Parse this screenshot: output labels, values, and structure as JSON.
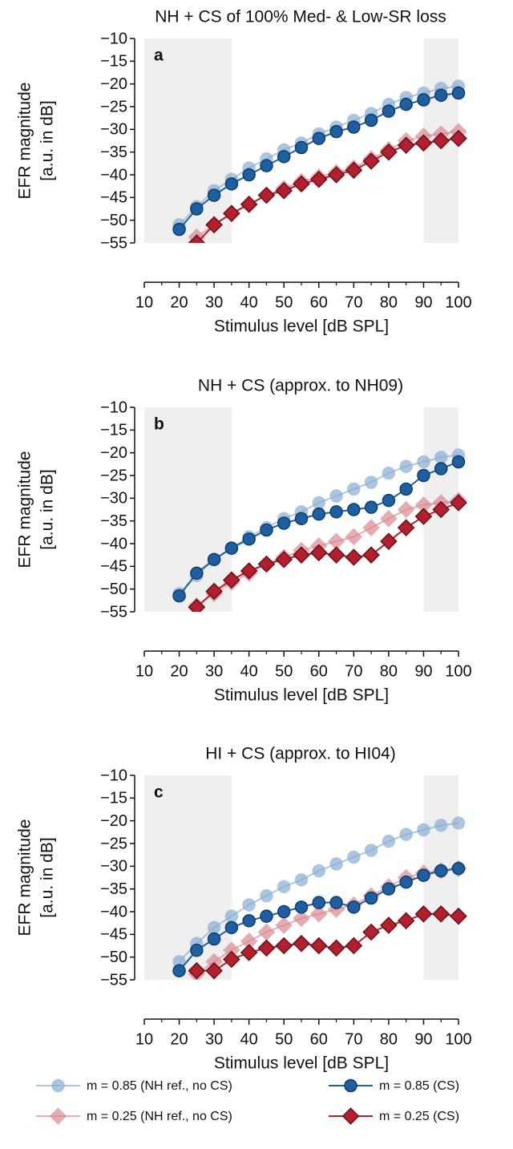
{
  "chart_data": [
    {
      "type": "line",
      "title": "NH + CS of 100% Med- & Low-SR loss",
      "panel": "a",
      "xlabel": "Stimulus level [dB SPL]",
      "ylabel": [
        "EFR magnitude",
        "[a.u. in dB]"
      ],
      "x": [
        20,
        25,
        30,
        35,
        40,
        45,
        50,
        55,
        60,
        65,
        70,
        75,
        80,
        85,
        90,
        95,
        100
      ],
      "xlim": [
        10,
        100
      ],
      "xticks": [
        10,
        20,
        30,
        40,
        50,
        60,
        70,
        80,
        90,
        100
      ],
      "xminorticks": [
        15,
        25,
        35,
        45,
        55,
        65,
        75,
        85,
        95
      ],
      "ylim": [
        -55,
        -10
      ],
      "yticks": [
        {
          "value": -10,
          "label": "−10"
        },
        {
          "value": -15,
          "label": "−15"
        },
        {
          "value": -20,
          "label": "−20"
        },
        {
          "value": -25,
          "label": "−25"
        },
        {
          "value": -30,
          "label": "−30"
        },
        {
          "value": -35,
          "label": "−35"
        },
        {
          "value": -40,
          "label": "−40"
        },
        {
          "value": -45,
          "label": "−45"
        },
        {
          "value": -50,
          "label": "−50"
        },
        {
          "value": -55,
          "label": "−55"
        }
      ],
      "spans": [
        [
          10,
          35
        ],
        [
          90,
          100
        ]
      ],
      "series": [
        {
          "name": "m = 0.85 (NH ref., no CS)",
          "color": "#8aaed4",
          "marker": "circle",
          "values": [
            -51,
            -47,
            -43.5,
            -41,
            -38.5,
            -36.5,
            -34.5,
            -33,
            -31,
            -29.5,
            -28,
            -26.5,
            -24.5,
            -23,
            -22,
            -21,
            -20.5
          ]
        },
        {
          "name": "m = 0.25 (NH ref., no CS)",
          "color": "#d98a93",
          "marker": "diamond",
          "values": [
            null,
            -53.7,
            -51,
            -48.5,
            -46.5,
            -44.5,
            -43,
            -41.5,
            -40.5,
            -39.5,
            -38.5,
            -36.5,
            -34.5,
            -32.5,
            -31.5,
            -31,
            -30.5
          ]
        },
        {
          "name": "m = 0.85 (CS)",
          "color": "#1f5fa0",
          "marker": "circle",
          "values": [
            -52,
            -47.5,
            -44.5,
            -42,
            -40,
            -38,
            -36,
            -34,
            -32,
            -30.5,
            -29.5,
            -28,
            -26,
            -24.5,
            -23.5,
            -22.5,
            -22
          ]
        },
        {
          "name": "m = 0.25 (CS)",
          "color": "#b0202e",
          "marker": "diamond",
          "values": [
            null,
            -55,
            -51,
            -48.5,
            -46.5,
            -44.5,
            -43.5,
            -42,
            -41,
            -40,
            -39,
            -37,
            -35,
            -33.5,
            -33,
            -32.5,
            -32
          ]
        }
      ]
    },
    {
      "type": "line",
      "title": "NH + CS (approx. to NH09)",
      "panel": "b",
      "xlabel": "Stimulus level [dB SPL]",
      "ylabel": [
        "EFR magnitude",
        "[a.u. in dB]"
      ],
      "x": [
        20,
        25,
        30,
        35,
        40,
        45,
        50,
        55,
        60,
        65,
        70,
        75,
        80,
        85,
        90,
        95,
        100
      ],
      "xlim": [
        10,
        100
      ],
      "xticks": [
        10,
        20,
        30,
        40,
        50,
        60,
        70,
        80,
        90,
        100
      ],
      "xminorticks": [
        15,
        25,
        35,
        45,
        55,
        65,
        75,
        85,
        95
      ],
      "ylim": [
        -55,
        -10
      ],
      "yticks": [
        {
          "value": -10,
          "label": "−10"
        },
        {
          "value": -15,
          "label": "−15"
        },
        {
          "value": -20,
          "label": "−20"
        },
        {
          "value": -25,
          "label": "−25"
        },
        {
          "value": -30,
          "label": "−30"
        },
        {
          "value": -35,
          "label": "−35"
        },
        {
          "value": -40,
          "label": "−40"
        },
        {
          "value": -45,
          "label": "−45"
        },
        {
          "value": -50,
          "label": "−50"
        },
        {
          "value": -55,
          "label": "−55"
        }
      ],
      "spans": [
        [
          10,
          35
        ],
        [
          90,
          100
        ]
      ],
      "series": [
        {
          "name": "m = 0.85 (NH ref., no CS)",
          "color": "#8aaed4",
          "marker": "circle",
          "values": [
            -51,
            -47,
            -43.5,
            -41,
            -38.5,
            -36.5,
            -34.5,
            -33,
            -31,
            -29.5,
            -28,
            -26.5,
            -24.5,
            -23,
            -22,
            -21,
            -20.5
          ]
        },
        {
          "name": "m = 0.25 (NH ref., no CS)",
          "color": "#d98a93",
          "marker": "diamond",
          "values": [
            null,
            -53.7,
            -51,
            -48.5,
            -46.5,
            -44.5,
            -43,
            -41.5,
            -40.5,
            -39.5,
            -38.5,
            -36.5,
            -34.5,
            -32.5,
            -31.5,
            -31,
            -30.5
          ]
        },
        {
          "name": "m = 0.85 (CS)",
          "color": "#1f5fa0",
          "marker": "circle",
          "values": [
            -51.5,
            -46.5,
            -43.5,
            -41,
            -39,
            -37,
            -35.5,
            -34.5,
            -33.5,
            -33,
            -32.5,
            -32,
            -30.5,
            -28,
            -25,
            -23.5,
            -22
          ]
        },
        {
          "name": "m = 0.25 (CS)",
          "color": "#b0202e",
          "marker": "diamond",
          "values": [
            null,
            -54,
            -50.5,
            -48,
            -46,
            -44.5,
            -43.5,
            -42.5,
            -42,
            -42.5,
            -43,
            -42.5,
            -39.5,
            -36.5,
            -34,
            -32.5,
            -31
          ]
        }
      ]
    },
    {
      "type": "line",
      "title": "HI + CS (approx. to HI04)",
      "panel": "c",
      "xlabel": "Stimulus level [dB SPL]",
      "ylabel": [
        "EFR magnitude",
        "[a.u. in dB]"
      ],
      "x": [
        20,
        25,
        30,
        35,
        40,
        45,
        50,
        55,
        60,
        65,
        70,
        75,
        80,
        85,
        90,
        95,
        100
      ],
      "xlim": [
        10,
        100
      ],
      "xticks": [
        10,
        20,
        30,
        40,
        50,
        60,
        70,
        80,
        90,
        100
      ],
      "xminorticks": [
        15,
        25,
        35,
        45,
        55,
        65,
        75,
        85,
        95
      ],
      "ylim": [
        -55,
        -10
      ],
      "yticks": [
        {
          "value": -10,
          "label": "−10"
        },
        {
          "value": -15,
          "label": "−15"
        },
        {
          "value": -20,
          "label": "−20"
        },
        {
          "value": -25,
          "label": "−25"
        },
        {
          "value": -30,
          "label": "−30"
        },
        {
          "value": -35,
          "label": "−35"
        },
        {
          "value": -40,
          "label": "−40"
        },
        {
          "value": -45,
          "label": "−45"
        },
        {
          "value": -50,
          "label": "−50"
        },
        {
          "value": -55,
          "label": "−55"
        }
      ],
      "spans": [
        [
          10,
          35
        ],
        [
          90,
          100
        ]
      ],
      "series": [
        {
          "name": "m = 0.85 (NH ref., no CS)",
          "color": "#8aaed4",
          "marker": "circle",
          "values": [
            -51,
            -47,
            -43.5,
            -41,
            -38.5,
            -36.5,
            -34.5,
            -33,
            -31,
            -29.5,
            -28,
            -26.5,
            -24.5,
            -23,
            -22,
            -21,
            -20.5
          ]
        },
        {
          "name": "m = 0.25 (NH ref., no CS)",
          "color": "#d98a93",
          "marker": "diamond",
          "values": [
            null,
            -53.7,
            -51,
            -48.5,
            -46.5,
            -44.5,
            -43,
            -41.5,
            -40.5,
            -39.5,
            -38.5,
            -36.5,
            -34.5,
            -32.5,
            -31.5,
            -31,
            -30.5
          ]
        },
        {
          "name": "m = 0.85 (CS)",
          "color": "#1f5fa0",
          "marker": "circle",
          "values": [
            -53,
            -48.5,
            -46,
            -43.5,
            -42,
            -41,
            -40,
            -39,
            -38,
            -38,
            -39,
            -37,
            -35,
            -33.5,
            -32,
            -31,
            -30.5
          ]
        },
        {
          "name": "m = 0.25 (CS)",
          "color": "#b0202e",
          "marker": "diamond",
          "values": [
            null,
            -53,
            -53,
            -50.5,
            -49,
            -48,
            -47.5,
            -47,
            -47.5,
            -48,
            -47.5,
            -44.5,
            -43,
            -42,
            -40.5,
            -40.5,
            -41
          ]
        }
      ]
    }
  ]
}
